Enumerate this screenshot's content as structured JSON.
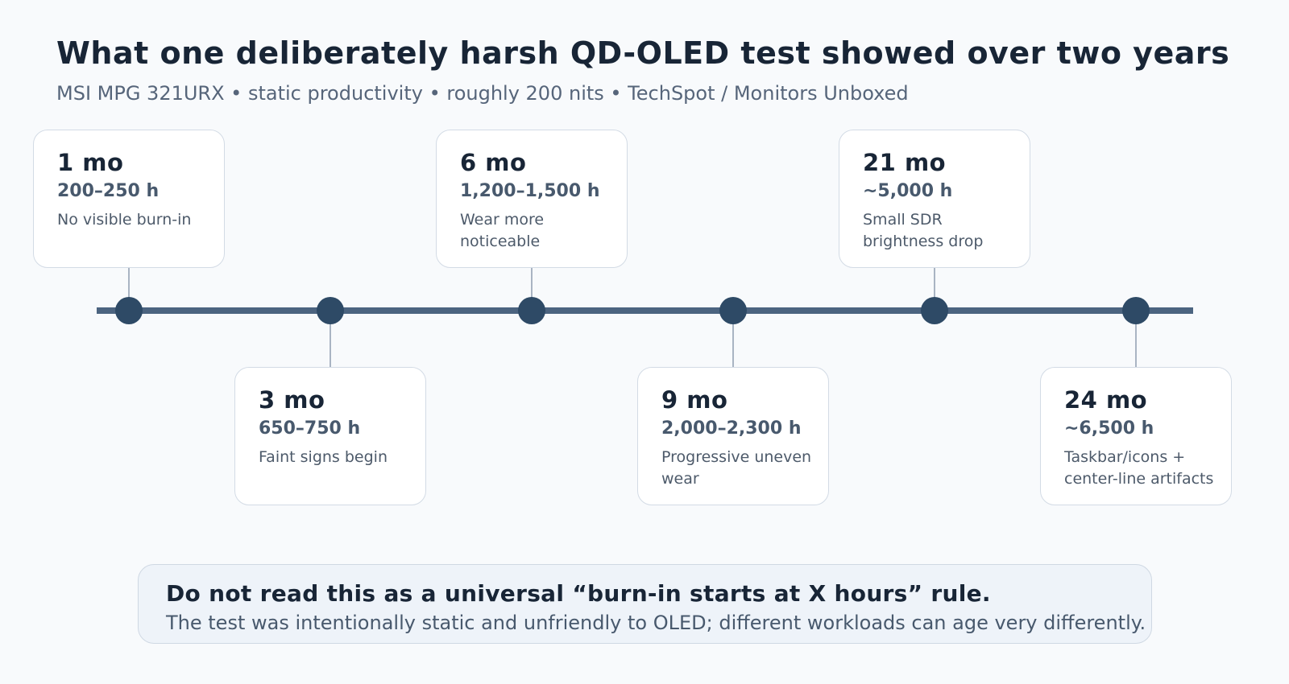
{
  "header": {
    "title": "What one deliberately harsh QD-OLED test showed over two years",
    "subtitle": "MSI MPG 321URX • static productivity • roughly 200 nits • TechSpot / Monitors Unboxed"
  },
  "timeline": {
    "milestones": [
      {
        "month": "1 mo",
        "hours": "200–250 h",
        "note": "No visible burn-in",
        "position": "above"
      },
      {
        "month": "3 mo",
        "hours": "650–750 h",
        "note": "Faint signs begin",
        "position": "below"
      },
      {
        "month": "6 mo",
        "hours": "1,200–1,500 h",
        "note": "Wear more noticeable",
        "position": "above"
      },
      {
        "month": "9 mo",
        "hours": "2,000–2,300 h",
        "note": "Progressive uneven wear",
        "position": "below"
      },
      {
        "month": "21 mo",
        "hours": "~5,000 h",
        "note": "Small SDR brightness drop",
        "position": "above"
      },
      {
        "month": "24 mo",
        "hours": "~6,500 h",
        "note": "Taskbar/icons + center-line artifacts",
        "position": "below"
      }
    ]
  },
  "callout": {
    "heading": "Do not read this as a universal “burn-in starts at X hours” rule.",
    "body": "The test was intentionally static and unfriendly to OLED; different workloads can age very differently."
  }
}
